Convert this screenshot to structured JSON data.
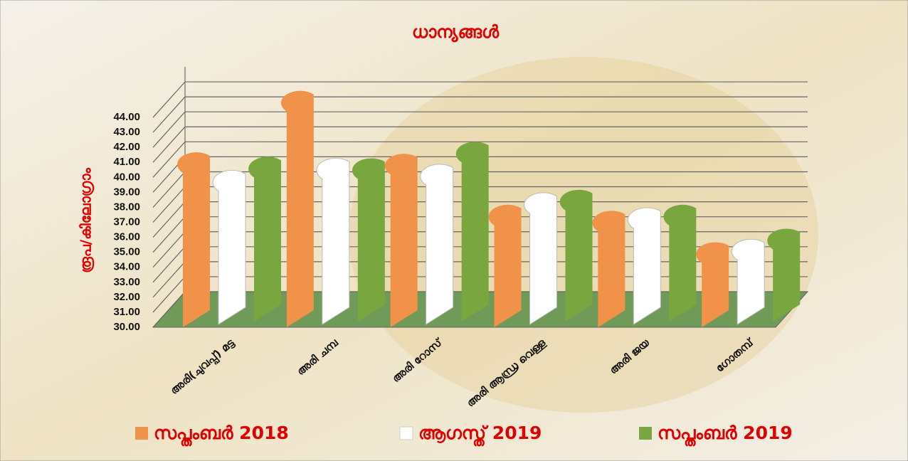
{
  "chart_data": {
    "type": "bar3d",
    "title": "ധാന്യങ്ങൾ",
    "y_label": "രൂപ/കിലോഗ്രാം",
    "categories": [
      "അരി(ചുവപ്പ്) മട്ട",
      "അരി ചമ്പ",
      "അരി റോസ്",
      "അരി ആന്ധ്ര വെള്ള",
      "അരി ജയ",
      "ഗോതമ്പ്"
    ],
    "series": [
      {
        "name": "സപ്തംബർ 2018",
        "color": "#f0924a",
        "values": [
          40.3,
          44.4,
          40.2,
          36.8,
          36.4,
          34.3
        ]
      },
      {
        "name": "ആഗസ്ത് 2019",
        "color": "#ffffff",
        "values": [
          39.1,
          39.9,
          39.5,
          37.6,
          36.6,
          34.5
        ]
      },
      {
        "name": "സപ്തംബർ 2019",
        "color": "#7aa640",
        "values": [
          40.0,
          39.9,
          41.0,
          37.8,
          36.8,
          35.2
        ]
      }
    ],
    "ylim": [
      30,
      45
    ],
    "yticks": [
      {
        "value": 30,
        "label": "30.00"
      },
      {
        "value": 31,
        "label": "31.00"
      },
      {
        "value": 32,
        "label": "32.00"
      },
      {
        "value": 33,
        "label": "33.00"
      },
      {
        "value": 34,
        "label": "34.00"
      },
      {
        "value": 35,
        "label": "35.00"
      },
      {
        "value": 36,
        "label": "36.00"
      },
      {
        "value": 37,
        "label": "37.00"
      },
      {
        "value": 38,
        "label": "38.00"
      },
      {
        "value": 39,
        "label": "39.00"
      },
      {
        "value": 40,
        "label": "40.00"
      },
      {
        "value": 41,
        "label": "41.00"
      },
      {
        "value": 42,
        "label": "42.00"
      },
      {
        "value": 43,
        "label": "43.00"
      },
      {
        "value": 44,
        "label": "44.00"
      }
    ],
    "grid": true
  }
}
